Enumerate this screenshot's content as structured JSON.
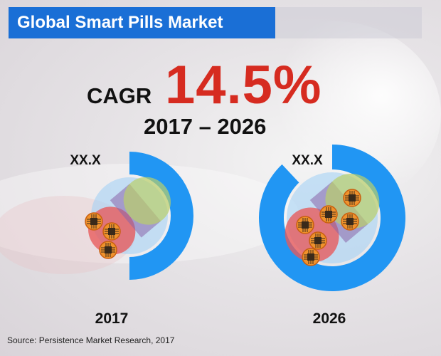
{
  "header": {
    "title": "Global Smart Pills Market"
  },
  "cagr": {
    "label": "CAGR",
    "value": "14.5%",
    "period": "2017 – 2026"
  },
  "source": "Source: Persistence Market Research, 2017",
  "colors": {
    "title_bg": "#1a6fd6",
    "cagr": "#d62b20",
    "ring": "#2196f3"
  },
  "chart_data": {
    "type": "donut",
    "categories": [
      "2017",
      "2026"
    ],
    "data_labels": [
      "XX.X",
      "XX.X"
    ],
    "ring_fraction": [
      0.5,
      0.88
    ],
    "icon": "smart-pill-capsule"
  }
}
